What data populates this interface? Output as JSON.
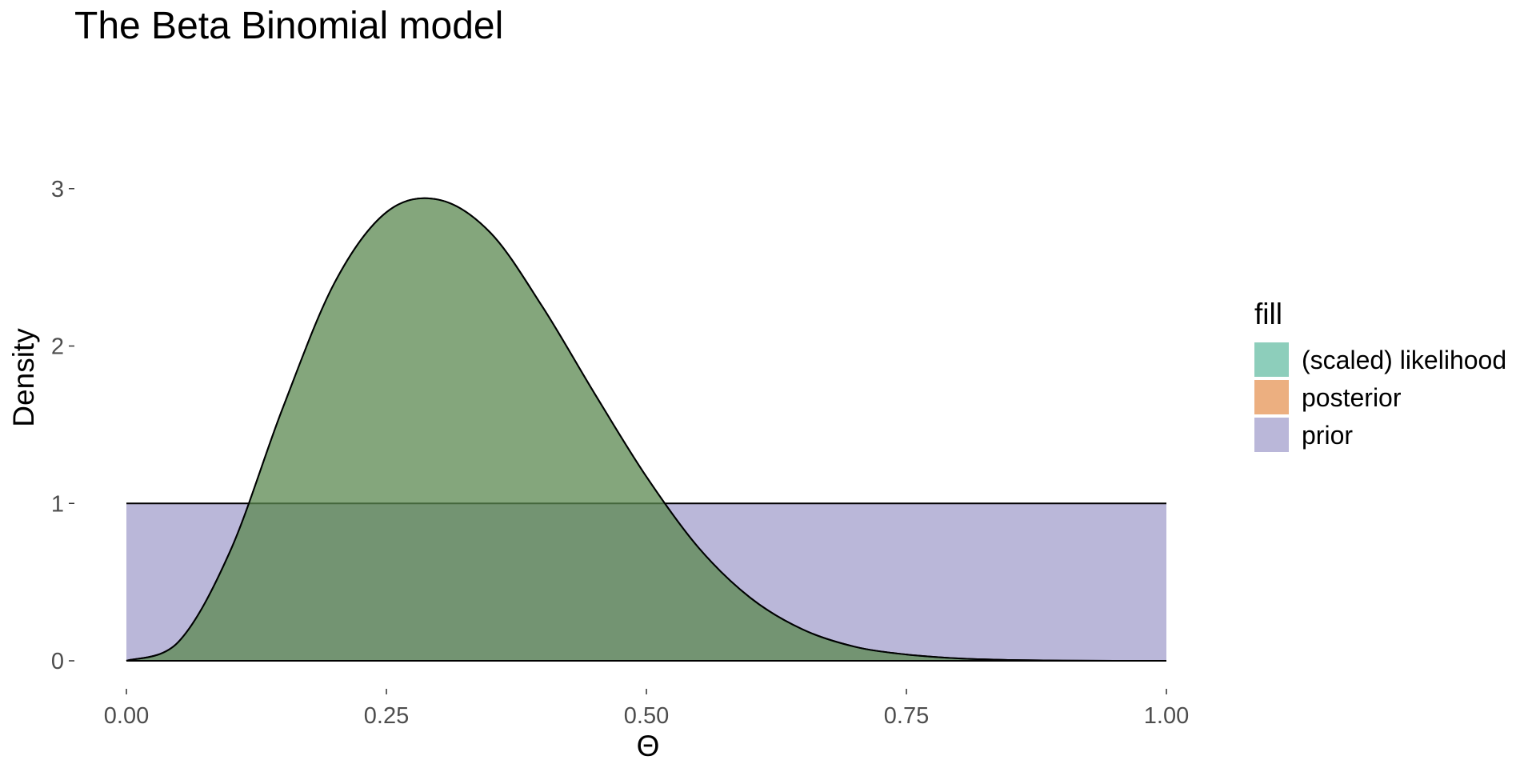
{
  "chart_data": {
    "type": "area",
    "title": "The Beta Binomial model",
    "xlabel": "Θ",
    "ylabel": "Density",
    "xlim": [
      0,
      1
    ],
    "ylim": [
      0,
      3
    ],
    "x_ticks": [
      0,
      0.25,
      0.5,
      0.75,
      1
    ],
    "x_tick_labels": [
      "0.00",
      "0.25",
      "0.50",
      "0.75",
      "1.00"
    ],
    "y_ticks": [
      0,
      1,
      2,
      3
    ],
    "y_tick_labels": [
      "0",
      "1",
      "2",
      "3"
    ],
    "grid": false,
    "legend": {
      "title": "fill",
      "position": "right",
      "entries": [
        {
          "label": "(scaled) likelihood",
          "color": "#1b9e77"
        },
        {
          "label": "posterior",
          "color": "#d95f02"
        },
        {
          "label": "prior",
          "color": "#7570b3"
        }
      ]
    },
    "series": [
      {
        "name": "prior",
        "color": "#7570b3",
        "x": [
          0,
          1
        ],
        "y": [
          1,
          1
        ]
      },
      {
        "name": "posterior",
        "color": "#d95f02",
        "x": [
          0,
          0.05,
          0.1,
          0.15,
          0.2,
          0.25,
          0.3,
          0.35,
          0.4,
          0.45,
          0.5,
          0.55,
          0.6,
          0.65,
          0.7,
          0.75,
          0.8,
          0.85,
          0.9,
          0.95,
          1
        ],
        "y": [
          0,
          0.12,
          0.7,
          1.6,
          2.4,
          2.85,
          2.93,
          2.72,
          2.25,
          1.7,
          1.17,
          0.72,
          0.4,
          0.2,
          0.09,
          0.04,
          0.015,
          0.005,
          0.001,
          0,
          0
        ]
      },
      {
        "name": "(scaled) likelihood",
        "color": "#1b9e77",
        "x": [
          0,
          0.05,
          0.1,
          0.15,
          0.2,
          0.25,
          0.3,
          0.35,
          0.4,
          0.45,
          0.5,
          0.55,
          0.6,
          0.65,
          0.7,
          0.75,
          0.8,
          0.85,
          0.9,
          0.95,
          1
        ],
        "y": [
          0,
          0.12,
          0.7,
          1.6,
          2.4,
          2.85,
          2.93,
          2.72,
          2.25,
          1.7,
          1.17,
          0.72,
          0.4,
          0.2,
          0.09,
          0.04,
          0.015,
          0.005,
          0.001,
          0,
          0
        ]
      }
    ]
  }
}
